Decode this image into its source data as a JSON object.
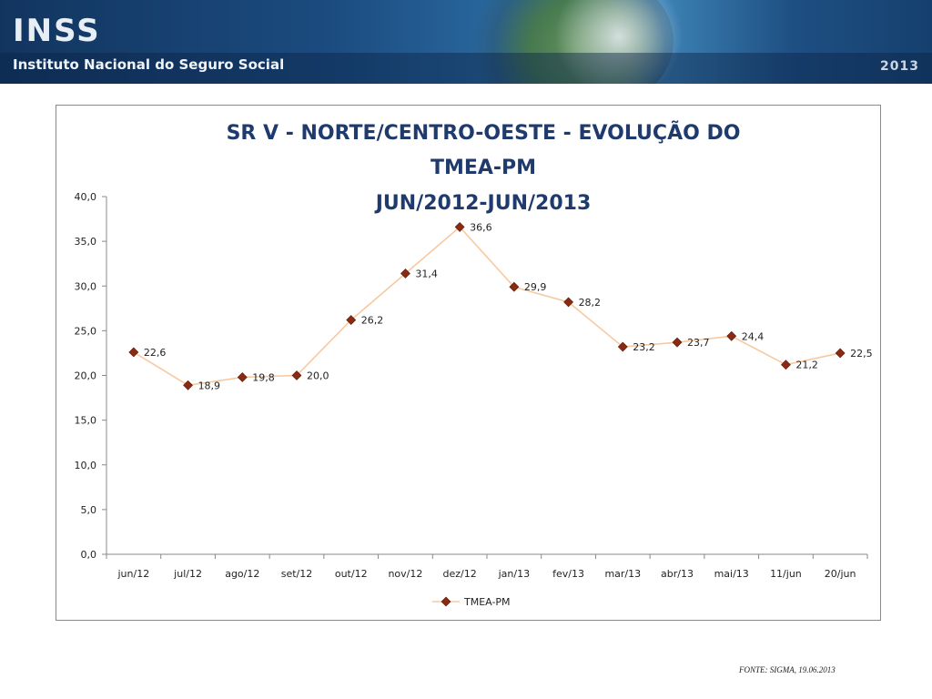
{
  "header": {
    "logo_text": "INSS",
    "subtitle": "Instituto Nacional do Seguro Social",
    "year": "2013"
  },
  "footer": {
    "source": "FONTE: SIGMA, 19.06.2013"
  },
  "colors": {
    "line": "#f7c9a0",
    "marker": "#8b2a12",
    "title": "#1f3b6e"
  },
  "chart_data": {
    "type": "line",
    "title_lines": [
      "SR V - NORTE/CENTRO-OESTE  - EVOLUÇÃO DO",
      "TMEA-PM",
      "JUN/2012-JUN/2013"
    ],
    "categories": [
      "jun/12",
      "jul/12",
      "ago/12",
      "set/12",
      "out/12",
      "nov/12",
      "dez/12",
      "jan/13",
      "fev/13",
      "mar/13",
      "abr/13",
      "mai/13",
      "11/jun",
      "20/jun"
    ],
    "series": [
      {
        "name": "TMEA-PM",
        "values": [
          22.6,
          18.9,
          19.8,
          20.0,
          26.2,
          31.4,
          36.6,
          29.9,
          28.2,
          23.2,
          23.7,
          24.4,
          21.2,
          22.5
        ],
        "labels": [
          "22,6",
          "18,9",
          "19,8",
          "20,0",
          "26,2",
          "31,4",
          "36,6",
          "29,9",
          "28,2",
          "23,2",
          "23,7",
          "24,4",
          "21,2",
          "22,5"
        ]
      }
    ],
    "yticks": [
      0,
      5,
      10,
      15,
      20,
      25,
      30,
      35,
      40
    ],
    "ytick_labels": [
      "0,0",
      "5,0",
      "10,0",
      "15,0",
      "20,0",
      "25,0",
      "30,0",
      "35,0",
      "40,0"
    ],
    "ylim": [
      0,
      40
    ],
    "xlabel": "",
    "ylabel": "",
    "legend_position": "bottom"
  }
}
